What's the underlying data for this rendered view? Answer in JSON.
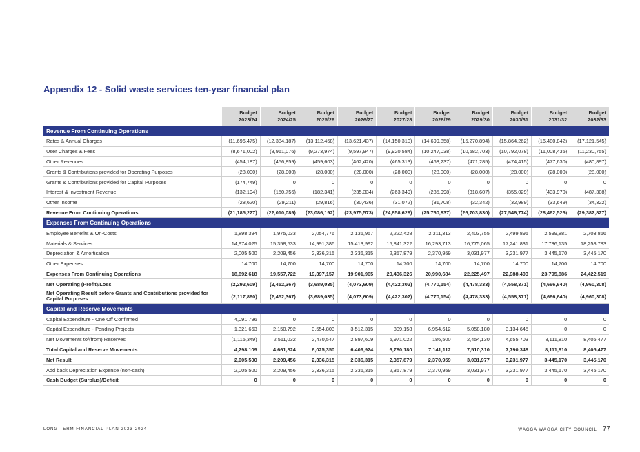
{
  "title": "Appendix 12 - Solid waste services ten-year financial plan",
  "headers": [
    {
      "l1": "Budget",
      "l2": "2023/24"
    },
    {
      "l1": "Budget",
      "l2": "2024/25"
    },
    {
      "l1": "Budget",
      "l2": "2025/26"
    },
    {
      "l1": "Budget",
      "l2": "2026/27"
    },
    {
      "l1": "Budget",
      "l2": "2027/28"
    },
    {
      "l1": "Budget",
      "l2": "2028/29"
    },
    {
      "l1": "Budget",
      "l2": "2029/30"
    },
    {
      "l1": "Budget",
      "l2": "2030/31"
    },
    {
      "l1": "Budget",
      "l2": "2031/32"
    },
    {
      "l1": "Budget",
      "l2": "2032/33"
    }
  ],
  "sections": [
    {
      "title": "Revenue From Continuing Operations",
      "rows": [
        {
          "label": "Rates & Annual Charges",
          "values": [
            "(11,696,475)",
            "(12,384,187)",
            "(13,112,458)",
            "(13,621,437)",
            "(14,150,310)",
            "(14,699,858)",
            "(15,270,894)",
            "(15,864,262)",
            "(16,480,842)",
            "(17,121,545)"
          ]
        },
        {
          "label": "User Charges & Fees",
          "values": [
            "(8,671,002)",
            "(8,961,076)",
            "(9,273,974)",
            "(9,597,947)",
            "(9,920,584)",
            "(10,247,038)",
            "(10,582,703)",
            "(10,792,078)",
            "(11,008,435)",
            "(11,230,755)"
          ]
        },
        {
          "label": "Other Revenues",
          "values": [
            "(454,187)",
            "(456,859)",
            "(459,603)",
            "(462,420)",
            "(465,313)",
            "(468,237)",
            "(471,285)",
            "(474,415)",
            "(477,630)",
            "(480,897)"
          ]
        },
        {
          "label": "Grants & Contributions provided for Operating Purposes",
          "values": [
            "(28,000)",
            "(28,000)",
            "(28,000)",
            "(28,000)",
            "(28,000)",
            "(28,000)",
            "(28,000)",
            "(28,000)",
            "(28,000)",
            "(28,000)"
          ]
        },
        {
          "label": "Grants & Contributions provided for Capital Purposes",
          "values": [
            "(174,749)",
            "0",
            "0",
            "0",
            "0",
            "0",
            "0",
            "0",
            "0",
            "0"
          ]
        },
        {
          "label": "Interest & Investment Revenue",
          "values": [
            "(132,194)",
            "(150,756)",
            "(182,341)",
            "(235,334)",
            "(263,349)",
            "(285,998)",
            "(318,607)",
            "(355,029)",
            "(433,970)",
            "(487,308)"
          ]
        },
        {
          "label": "Other Income",
          "values": [
            "(28,620)",
            "(29,211)",
            "(29,816)",
            "(30,436)",
            "(31,072)",
            "(31,708)",
            "(32,342)",
            "(32,989)",
            "(33,649)",
            "(34,322)"
          ]
        },
        {
          "label": "Revenue From Continuing Operations",
          "bold": true,
          "values": [
            "(21,185,227)",
            "(22,010,089)",
            "(23,086,192)",
            "(23,975,573)",
            "(24,858,628)",
            "(25,760,837)",
            "(26,703,830)",
            "(27,546,774)",
            "(28,462,526)",
            "(29,382,827)"
          ]
        }
      ]
    },
    {
      "title": "Expenses From Continuing Operations",
      "rows": [
        {
          "label": "Employee Benefits & On-Costs",
          "values": [
            "1,898,394",
            "1,975,033",
            "2,054,776",
            "2,136,957",
            "2,222,428",
            "2,311,313",
            "2,403,755",
            "2,499,895",
            "2,599,881",
            "2,703,866"
          ]
        },
        {
          "label": "Materials & Services",
          "values": [
            "14,974,025",
            "15,358,533",
            "14,991,386",
            "15,413,992",
            "15,841,322",
            "16,293,713",
            "16,775,065",
            "17,241,831",
            "17,736,135",
            "18,258,783"
          ]
        },
        {
          "label": "Depreciation & Amortisation",
          "values": [
            "2,005,500",
            "2,209,456",
            "2,336,315",
            "2,336,315",
            "2,357,879",
            "2,370,959",
            "3,031,977",
            "3,231,977",
            "3,445,170",
            "3,445,170"
          ]
        },
        {
          "label": "Other Expenses",
          "values": [
            "14,700",
            "14,700",
            "14,700",
            "14,700",
            "14,700",
            "14,700",
            "14,700",
            "14,700",
            "14,700",
            "14,700"
          ]
        },
        {
          "label": "Expenses From Continuing Operations",
          "bold": true,
          "values": [
            "18,892,618",
            "19,557,722",
            "19,397,157",
            "19,901,965",
            "20,436,326",
            "20,990,684",
            "22,225,497",
            "22,988,403",
            "23,795,886",
            "24,422,519"
          ]
        },
        {
          "label": "Net Operating (Profit)/Loss",
          "bold": true,
          "values": [
            "(2,292,609)",
            "(2,452,367)",
            "(3,689,035)",
            "(4,073,609)",
            "(4,422,302)",
            "(4,770,154)",
            "(4,478,333)",
            "(4,558,371)",
            "(4,666,640)",
            "(4,960,308)"
          ]
        },
        {
          "label": "Net Operating Result before Grants and Contributions provided for Capital Purposes",
          "bold": true,
          "tall": true,
          "values": [
            "(2,117,860)",
            "(2,452,367)",
            "(3,689,035)",
            "(4,073,609)",
            "(4,422,302)",
            "(4,770,154)",
            "(4,478,333)",
            "(4,558,371)",
            "(4,666,640)",
            "(4,960,308)"
          ]
        }
      ]
    },
    {
      "title": "Capital and Reserve Movements",
      "rows": [
        {
          "label": "Capital Expenditure - One Off Confirmed",
          "values": [
            "4,091,796",
            "0",
            "0",
            "0",
            "0",
            "0",
            "0",
            "0",
            "0",
            "0"
          ]
        },
        {
          "label": "Capital Expenditure - Pending Projects",
          "values": [
            "1,321,663",
            "2,150,792",
            "3,554,803",
            "3,512,315",
            "809,158",
            "6,954,612",
            "5,058,180",
            "3,134,645",
            "0",
            "0"
          ]
        },
        {
          "label": "Net Movements to/(from) Reserves",
          "values": [
            "(1,115,349)",
            "2,511,032",
            "2,470,547",
            "2,897,609",
            "5,971,022",
            "186,500",
            "2,454,130",
            "4,655,703",
            "8,111,810",
            "8,405,477"
          ]
        },
        {
          "label": "Total Capital and Reserve Movements",
          "bold": true,
          "values": [
            "4,298,109",
            "4,661,824",
            "6,025,350",
            "6,409,924",
            "6,780,180",
            "7,141,112",
            "7,510,310",
            "7,790,348",
            "8,111,810",
            "8,405,477"
          ]
        },
        {
          "label": "Net Result",
          "bold": true,
          "values": [
            "2,005,500",
            "2,209,456",
            "2,336,315",
            "2,336,315",
            "2,357,879",
            "2,370,959",
            "3,031,977",
            "3,231,977",
            "3,445,170",
            "3,445,170"
          ]
        },
        {
          "label": "Add back Depreciation Expense (non-cash)",
          "values": [
            "2,005,500",
            "2,209,456",
            "2,336,315",
            "2,336,315",
            "2,357,879",
            "2,370,959",
            "3,031,977",
            "3,231,977",
            "3,445,170",
            "3,445,170"
          ]
        },
        {
          "label": "Cash Budget (Surplus)/Deficit",
          "bold": true,
          "values": [
            "0",
            "0",
            "0",
            "0",
            "0",
            "0",
            "0",
            "0",
            "0",
            "0"
          ]
        }
      ]
    }
  ],
  "footer": {
    "left": "LONG TERM FINANCIAL PLAN 2023-2024",
    "right": "WAGGA WAGGA CITY COUNCIL",
    "page": "77"
  }
}
